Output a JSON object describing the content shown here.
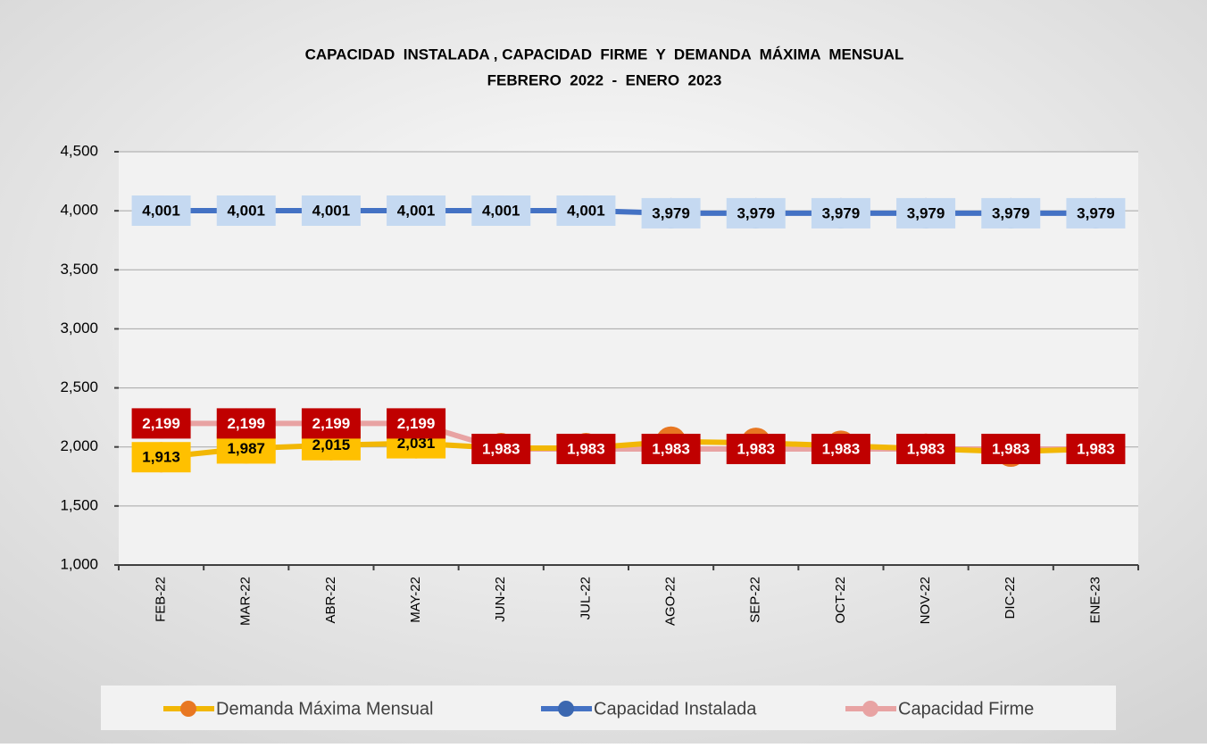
{
  "chart_data": {
    "type": "line",
    "title": "CAPACIDAD  INSTALADA , CAPACIDAD  FIRME  Y  DEMANDA  MÁXIMA  MENSUAL",
    "subtitle": "FEBRERO  2022  -  ENERO  2023",
    "categories": [
      "FEB-22",
      "MAR-22",
      "ABR-22",
      "MAY-22",
      "JUN-22",
      "JUL-22",
      "AGO-22",
      "SEP-22",
      "OCT-22",
      "NOV-22",
      "DIC-22",
      "ENE-23"
    ],
    "ylim": [
      1000,
      4500
    ],
    "yticks": [
      {
        "value": 1000,
        "label": "1,000"
      },
      {
        "value": 1500,
        "label": "1,500"
      },
      {
        "value": 2000,
        "label": "2,000"
      },
      {
        "value": 2500,
        "label": "2,500"
      },
      {
        "value": 3000,
        "label": "3,000"
      },
      {
        "value": 3500,
        "label": "3,500"
      },
      {
        "value": 4000,
        "label": "4,000"
      },
      {
        "value": 4500,
        "label": "4,500"
      }
    ],
    "grid": true,
    "legend": "bottom",
    "series": [
      {
        "name": "Demanda Máxima Mensual",
        "color": "#f2b705",
        "marker_color": "#e87722",
        "label_fill": "#ffc000",
        "label_color": "#000000",
        "values": [
          1913,
          1987,
          2015,
          2031,
          1990,
          1990,
          2045,
          2035,
          2010,
          1985,
          1960,
          1983
        ],
        "value_labels": [
          "1,913",
          "1,987",
          "2,015",
          "2,031",
          null,
          null,
          null,
          null,
          null,
          null,
          null,
          null
        ]
      },
      {
        "name": "Capacidad Instalada",
        "color": "#4472c4",
        "marker_color": "#3b67b0",
        "label_fill": "#c5d9f1",
        "label_color": "#000000",
        "values": [
          4001,
          4001,
          4001,
          4001,
          4001,
          4001,
          3979,
          3979,
          3979,
          3979,
          3979,
          3979
        ],
        "value_labels": [
          "4,001",
          "4,001",
          "4,001",
          "4,001",
          "4,001",
          "4,001",
          "3,979",
          "3,979",
          "3,979",
          "3,979",
          "3,979",
          "3,979"
        ]
      },
      {
        "name": "Capacidad Firme",
        "color": "#e8a3a3",
        "marker_color": "#e8a3a3",
        "label_fill": "#c00000",
        "label_color": "#ffffff",
        "values": [
          2199,
          2199,
          2199,
          2199,
          1983,
          1983,
          1983,
          1983,
          1983,
          1983,
          1983,
          1983
        ],
        "value_labels": [
          "2,199",
          "2,199",
          "2,199",
          "2,199",
          "1,983",
          "1,983",
          "1,983",
          "1,983",
          "1,983",
          "1,983",
          "1,983",
          "1,983"
        ]
      }
    ]
  }
}
